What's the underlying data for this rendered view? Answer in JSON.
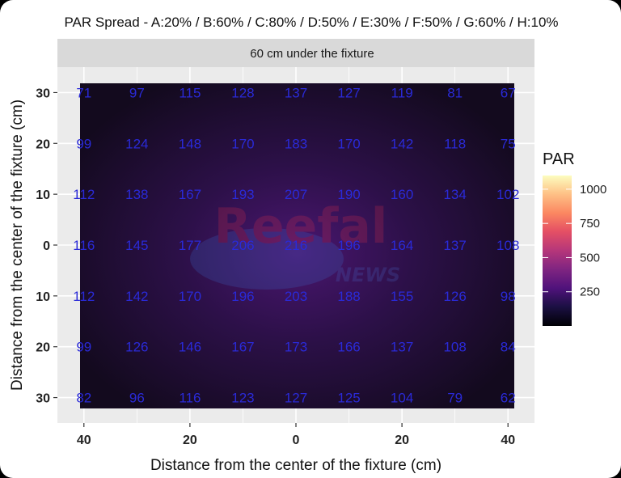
{
  "chart_data": {
    "type": "heatmap",
    "title": "PAR Spread - A:20% / B:60% / C:80% / D:50% / E:30% / F:50% / G:60% / H:10%",
    "facet_label": "60 cm under the fixture",
    "xlabel": "Distance from the center of the fixture (cm)",
    "ylabel": "Distance from the center of the fixture (cm)",
    "x": [
      40,
      30,
      20,
      10,
      0,
      -10,
      -20,
      -30,
      -40
    ],
    "y": [
      -30,
      -20,
      -10,
      0,
      10,
      20,
      30
    ],
    "xlim": [
      45,
      -45
    ],
    "ylim": [
      35,
      -35
    ],
    "x_ticks": [
      40,
      20,
      0,
      -20,
      -40
    ],
    "x_tick_labels": [
      "40",
      "20",
      "0",
      "20",
      "40"
    ],
    "y_ticks": [
      -30,
      -20,
      -10,
      0,
      10,
      20,
      30
    ],
    "y_tick_labels": [
      "30",
      "20",
      "10",
      "0",
      "10",
      "20",
      "30"
    ],
    "values": [
      [
        82,
        96,
        116,
        123,
        127,
        125,
        104,
        79,
        62
      ],
      [
        99,
        126,
        146,
        167,
        173,
        166,
        137,
        108,
        84
      ],
      [
        112,
        142,
        170,
        196,
        203,
        188,
        155,
        126,
        98
      ],
      [
        116,
        145,
        177,
        206,
        216,
        196,
        164,
        137,
        108
      ],
      [
        112,
        138,
        167,
        193,
        207,
        190,
        160,
        134,
        102
      ],
      [
        99,
        124,
        148,
        170,
        183,
        170,
        142,
        118,
        75
      ],
      [
        71,
        97,
        115,
        128,
        137,
        127,
        119,
        81,
        67
      ]
    ],
    "colorscale": "magma",
    "color_range": [
      0,
      1100
    ],
    "legend": {
      "title": "PAR",
      "ticks": [
        250,
        500,
        750,
        1000
      ],
      "tick_labels": [
        "250",
        "500",
        "750",
        "1000"
      ],
      "placement": "right"
    },
    "grid": true,
    "value_label_color": "#2a2ad8",
    "panel_background": "#ebebeb",
    "strip_background": "#d9d9d9"
  },
  "watermark": {
    "text": "Reefal",
    "subtext": "NEWS"
  }
}
